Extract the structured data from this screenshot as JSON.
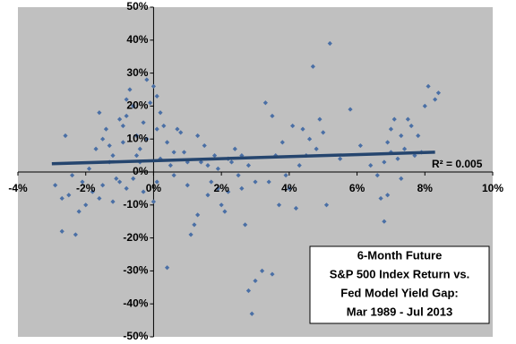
{
  "chart_data": {
    "type": "scatter",
    "title_lines": [
      "6-Month Future",
      "S&P 500 Index Return vs.",
      "Fed Model Yield Gap:",
      "Mar 1989 - Jul 2013"
    ],
    "annotation": "R² = 0.005",
    "color": "#4a6fa5",
    "trend_color": "#25456e",
    "background": "#c0c0c0",
    "xlim": [
      -4,
      10
    ],
    "ylim": [
      -50,
      50
    ],
    "xticks": [
      {
        "value": -4,
        "label": "-4%"
      },
      {
        "value": -2,
        "label": "-2%"
      },
      {
        "value": 0,
        "label": "0%"
      },
      {
        "value": 2,
        "label": "2%"
      },
      {
        "value": 4,
        "label": "4%"
      },
      {
        "value": 6,
        "label": "6%"
      },
      {
        "value": 8,
        "label": "8%"
      },
      {
        "value": 10,
        "label": "10%"
      }
    ],
    "yticks": [
      {
        "value": -50,
        "label": "-50%"
      },
      {
        "value": -40,
        "label": "-40%"
      },
      {
        "value": -30,
        "label": "-30%"
      },
      {
        "value": -20,
        "label": "-20%"
      },
      {
        "value": -10,
        "label": "-10%"
      },
      {
        "value": 0,
        "label": "0%"
      },
      {
        "value": 10,
        "label": "10%"
      },
      {
        "value": 20,
        "label": "20%"
      },
      {
        "value": 30,
        "label": "30%"
      },
      {
        "value": 40,
        "label": "40%"
      },
      {
        "value": 50,
        "label": "50%"
      }
    ],
    "x": [
      -2.6,
      -2.9,
      -2.7,
      -2.3,
      -2.5,
      -2.2,
      -2.0,
      -1.8,
      -1.6,
      -1.5,
      -1.7,
      -1.6,
      -1.4,
      -1.3,
      -1.2,
      -1.1,
      -1.0,
      -1.0,
      -0.9,
      -0.8,
      -0.8,
      -0.7,
      -0.6,
      -0.5,
      -0.4,
      -0.3,
      -0.2,
      -0.1,
      0.0,
      0.1,
      0.2,
      0.1,
      -0.2,
      -0.4,
      -0.6,
      -0.8,
      -1.2,
      -1.9,
      -2.1,
      -2.4,
      -1.3,
      -0.5,
      -0.9,
      -0.3,
      0.0,
      0.1,
      0.2,
      0.3,
      0.4,
      0.5,
      0.6,
      0.7,
      0.8,
      0.9,
      1.0,
      1.1,
      1.2,
      1.3,
      1.4,
      1.5,
      1.6,
      1.7,
      1.8,
      1.9,
      2.0,
      2.1,
      2.2,
      2.3,
      2.4,
      2.5,
      2.6,
      2.7,
      2.8,
      2.9,
      3.0,
      3.2,
      3.5,
      3.7,
      0.4,
      1.3,
      1.6,
      1.9,
      2.2,
      2.6,
      3.0,
      3.3,
      3.5,
      3.6,
      3.8,
      3.9,
      4.0,
      4.1,
      4.2,
      4.3,
      4.4,
      4.6,
      4.7,
      4.8,
      4.9,
      5.0,
      5.1,
      5.2,
      5.5,
      5.8,
      6.1,
      6.4,
      6.6,
      6.7,
      6.8,
      6.9,
      6.9,
      7.0,
      7.1,
      7.2,
      7.3,
      7.4,
      7.5,
      7.6,
      7.7,
      7.8,
      7.9,
      8.0,
      8.1,
      8.3,
      8.4,
      7.0,
      6.8,
      7.3,
      4.5,
      3.4,
      2.8,
      1.0,
      0.6,
      -1.5,
      -2.7
    ],
    "y": [
      11,
      -4,
      -18,
      -19,
      -7,
      -12,
      -10,
      -6,
      -8,
      -4,
      7,
      18,
      13,
      8,
      5,
      -2,
      -3,
      16,
      14,
      17,
      22,
      25,
      20,
      11,
      7,
      15,
      28,
      21,
      26,
      23,
      18,
      13,
      10,
      3,
      -2,
      -5,
      -9,
      1,
      -3,
      -1,
      3,
      5,
      9,
      -6,
      -9,
      -3,
      4,
      14,
      9,
      2,
      -1,
      13,
      12,
      6,
      -4,
      -19,
      -16,
      -13,
      3,
      8,
      -7,
      -3,
      5,
      1,
      -10,
      -12,
      -6,
      3,
      7,
      -1,
      -5,
      -16,
      -36,
      -43,
      -33,
      -30,
      -31,
      -10,
      -29,
      11,
      2,
      -5,
      4,
      5,
      -3,
      21,
      17,
      5,
      9,
      -1,
      -5,
      14,
      -11,
      2,
      13,
      10,
      32,
      7,
      16,
      12,
      -10,
      39,
      4,
      19,
      8,
      2,
      -1,
      -8,
      -15,
      -7,
      9,
      13,
      16,
      4,
      11,
      7,
      16,
      14,
      5,
      11,
      6,
      20,
      26,
      22,
      24,
      6,
      3,
      -2,
      5,
      -3,
      2,
      3,
      6,
      10,
      -8
    ],
    "trendline": {
      "x": [
        -3,
        8.3
      ],
      "y": [
        2.5,
        6
      ]
    }
  }
}
